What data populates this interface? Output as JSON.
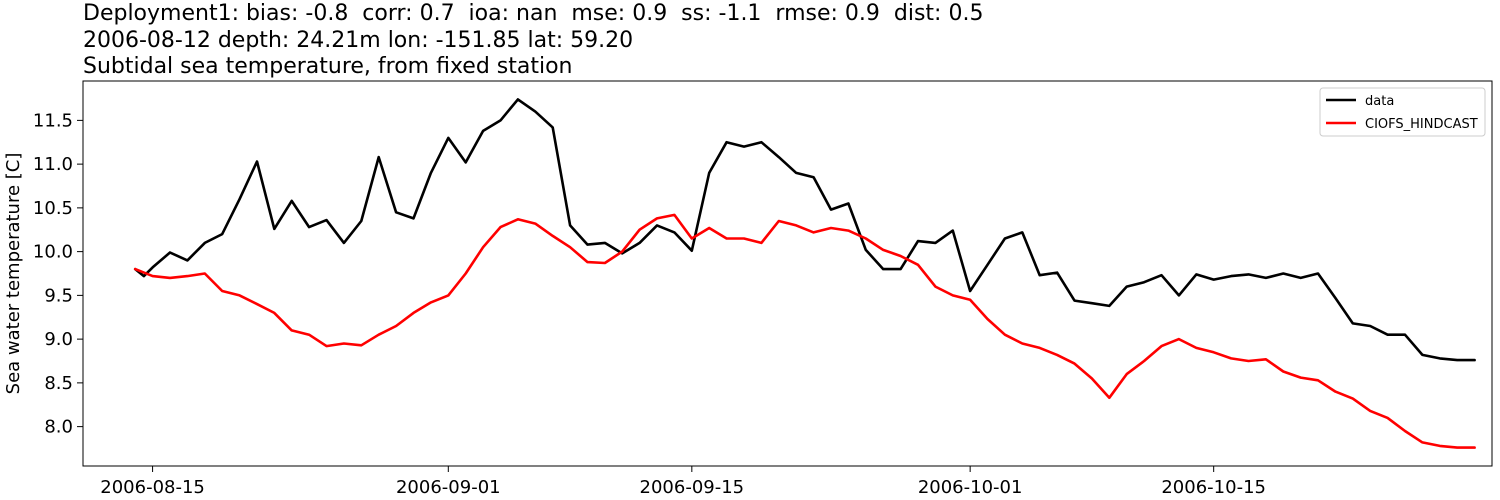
{
  "header": {
    "line1": "Deployment1: bias: -0.8  corr: 0.7  ioa: nan  mse: 0.9  ss: -1.1  rmse: 0.9  dist: 0.5",
    "line2": "2006-08-12 depth: 24.21m lon: -151.85 lat: 59.20",
    "line3": "Subtidal sea temperature, from fixed station"
  },
  "chart_data": {
    "type": "line",
    "title": "Subtidal sea temperature, from fixed station",
    "xlabel": "",
    "ylabel": "Sea water temperature [C]",
    "xlim": [
      "2006-08-11",
      "2006-10-31"
    ],
    "ylim": [
      7.55,
      11.95
    ],
    "x_ticks": [
      "2006-08-15",
      "2006-09-01",
      "2006-09-15",
      "2006-10-01",
      "2006-10-15"
    ],
    "y_ticks": [
      "8.0",
      "8.5",
      "9.0",
      "9.5",
      "10.0",
      "10.5",
      "11.0",
      "11.5"
    ],
    "grid": false,
    "legend": "top-right",
    "series": [
      {
        "name": "data",
        "color": "#000000",
        "x": [
          "2006-08-14",
          "2006-08-14 12:00",
          "2006-08-15",
          "2006-08-16",
          "2006-08-17",
          "2006-08-18",
          "2006-08-19",
          "2006-08-20",
          "2006-08-21",
          "2006-08-22",
          "2006-08-23",
          "2006-08-24",
          "2006-08-25",
          "2006-08-26",
          "2006-08-27",
          "2006-08-28",
          "2006-08-29",
          "2006-08-30",
          "2006-08-31",
          "2006-09-01",
          "2006-09-02",
          "2006-09-03",
          "2006-09-04",
          "2006-09-05",
          "2006-09-06",
          "2006-09-07",
          "2006-09-08",
          "2006-09-09",
          "2006-09-10",
          "2006-09-11",
          "2006-09-12",
          "2006-09-13",
          "2006-09-14",
          "2006-09-15",
          "2006-09-16",
          "2006-09-17",
          "2006-09-18",
          "2006-09-19",
          "2006-09-20",
          "2006-09-21",
          "2006-09-22",
          "2006-09-23",
          "2006-09-24",
          "2006-09-25",
          "2006-09-26",
          "2006-09-27",
          "2006-09-28",
          "2006-09-29",
          "2006-09-30",
          "2006-10-01",
          "2006-10-02",
          "2006-10-03",
          "2006-10-04",
          "2006-10-05",
          "2006-10-06",
          "2006-10-07",
          "2006-10-08",
          "2006-10-09",
          "2006-10-10",
          "2006-10-11",
          "2006-10-12",
          "2006-10-13",
          "2006-10-14",
          "2006-10-15",
          "2006-10-16",
          "2006-10-17",
          "2006-10-18",
          "2006-10-19",
          "2006-10-20",
          "2006-10-21",
          "2006-10-22",
          "2006-10-23",
          "2006-10-24",
          "2006-10-25",
          "2006-10-26",
          "2006-10-27",
          "2006-10-28",
          "2006-10-29",
          "2006-10-30"
        ],
        "y": [
          9.8,
          9.72,
          9.82,
          9.99,
          9.9,
          10.1,
          10.2,
          10.6,
          11.03,
          10.26,
          10.58,
          10.28,
          10.36,
          10.1,
          10.35,
          11.08,
          10.45,
          10.38,
          10.9,
          11.3,
          11.02,
          11.38,
          11.5,
          11.74,
          11.6,
          11.42,
          10.3,
          10.08,
          10.1,
          9.98,
          10.1,
          10.3,
          10.22,
          10.01,
          10.9,
          11.25,
          11.2,
          11.25,
          11.08,
          10.9,
          10.85,
          10.48,
          10.55,
          10.02,
          9.8,
          9.8,
          10.12,
          10.1,
          10.24,
          9.55,
          9.85,
          10.15,
          10.22,
          9.73,
          9.76,
          9.44,
          9.41,
          9.38,
          9.6,
          9.65,
          9.73,
          9.5,
          9.74,
          9.68,
          9.72,
          9.74,
          9.7,
          9.75,
          9.7,
          9.75,
          9.47,
          9.18,
          9.15,
          9.05,
          9.05,
          8.82,
          8.78,
          8.76,
          8.76
        ]
      },
      {
        "name": "CIOFS_HINDCAST",
        "color": "#ff0000",
        "x": [
          "2006-08-14",
          "2006-08-15",
          "2006-08-16",
          "2006-08-17",
          "2006-08-18",
          "2006-08-19",
          "2006-08-20",
          "2006-08-21",
          "2006-08-22",
          "2006-08-23",
          "2006-08-24",
          "2006-08-25",
          "2006-08-26",
          "2006-08-27",
          "2006-08-28",
          "2006-08-29",
          "2006-08-30",
          "2006-08-31",
          "2006-09-01",
          "2006-09-02",
          "2006-09-03",
          "2006-09-04",
          "2006-09-05",
          "2006-09-06",
          "2006-09-07",
          "2006-09-08",
          "2006-09-09",
          "2006-09-10",
          "2006-09-11",
          "2006-09-12",
          "2006-09-13",
          "2006-09-14",
          "2006-09-15",
          "2006-09-16",
          "2006-09-17",
          "2006-09-18",
          "2006-09-19",
          "2006-09-20",
          "2006-09-21",
          "2006-09-22",
          "2006-09-23",
          "2006-09-24",
          "2006-09-25",
          "2006-09-26",
          "2006-09-27",
          "2006-09-28",
          "2006-09-29",
          "2006-09-30",
          "2006-10-01",
          "2006-10-02",
          "2006-10-03",
          "2006-10-04",
          "2006-10-05",
          "2006-10-06",
          "2006-10-07",
          "2006-10-08",
          "2006-10-09",
          "2006-10-10",
          "2006-10-11",
          "2006-10-12",
          "2006-10-13",
          "2006-10-14",
          "2006-10-15",
          "2006-10-16",
          "2006-10-17",
          "2006-10-18",
          "2006-10-19",
          "2006-10-20",
          "2006-10-21",
          "2006-10-22",
          "2006-10-23",
          "2006-10-24",
          "2006-10-25",
          "2006-10-26",
          "2006-10-27",
          "2006-10-28",
          "2006-10-29",
          "2006-10-30"
        ],
        "y": [
          9.8,
          9.72,
          9.7,
          9.72,
          9.75,
          9.55,
          9.5,
          9.4,
          9.3,
          9.1,
          9.05,
          8.92,
          8.95,
          8.93,
          9.05,
          9.15,
          9.3,
          9.42,
          9.5,
          9.75,
          10.05,
          10.28,
          10.37,
          10.32,
          10.18,
          10.05,
          9.88,
          9.87,
          10.0,
          10.25,
          10.38,
          10.42,
          10.15,
          10.27,
          10.15,
          10.15,
          10.1,
          10.35,
          10.3,
          10.22,
          10.27,
          10.24,
          10.15,
          10.02,
          9.95,
          9.85,
          9.6,
          9.5,
          9.45,
          9.23,
          9.05,
          8.95,
          8.9,
          8.82,
          8.72,
          8.55,
          8.33,
          8.6,
          8.75,
          8.92,
          9.0,
          8.9,
          8.85,
          8.78,
          8.75,
          8.77,
          8.63,
          8.56,
          8.53,
          8.4,
          8.32,
          8.18,
          8.1,
          7.95,
          7.82,
          7.78,
          7.76,
          7.76
        ]
      }
    ]
  }
}
